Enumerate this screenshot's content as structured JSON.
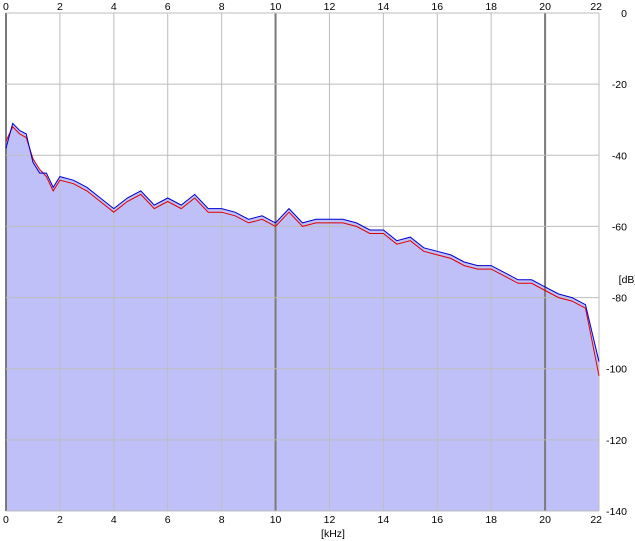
{
  "chart_data": {
    "type": "area",
    "title": "",
    "xlabel": "[kHz]",
    "ylabel": "[dB]",
    "xlim": [
      0,
      22
    ],
    "ylim": [
      -140,
      0
    ],
    "x_ticks": [
      "0",
      "2",
      "4",
      "6",
      "8",
      "10",
      "12",
      "14",
      "16",
      "18",
      "20",
      "22"
    ],
    "y_ticks": [
      "0",
      "-20",
      "-40",
      "-60",
      "-80",
      "-100",
      "-120",
      "-140"
    ],
    "grid": true,
    "legend": "none",
    "colors": {
      "background": "#ffffff",
      "fill": "#c0c0f8",
      "grid_minor": "#bdbdbd",
      "grid_major": "#7a7a7a",
      "series_1": "#e00000",
      "series_2": "#0000d0"
    },
    "series": [
      {
        "color": "#e00000",
        "x": [
          0,
          0.25,
          0.5,
          0.75,
          1,
          1.25,
          1.5,
          1.75,
          2,
          2.5,
          3,
          3.5,
          4,
          4.5,
          5,
          5.5,
          6,
          6.5,
          7,
          7.5,
          8,
          8.5,
          9,
          9.5,
          10,
          10.5,
          11,
          11.5,
          12,
          12.5,
          13,
          13.5,
          14,
          14.5,
          15,
          15.5,
          16,
          16.5,
          17,
          17.5,
          18,
          18.5,
          19,
          19.5,
          20,
          20.5,
          21,
          21.5,
          22
        ],
        "values": [
          -36,
          -32,
          -34,
          -35,
          -41,
          -44,
          -46,
          -50,
          -47,
          -48,
          -50,
          -53,
          -56,
          -53,
          -51,
          -55,
          -53,
          -55,
          -52,
          -56,
          -56,
          -57,
          -59,
          -58,
          -60,
          -56,
          -60,
          -59,
          -59,
          -59,
          -60,
          -62,
          -62,
          -65,
          -64,
          -67,
          -68,
          -69,
          -71,
          -72,
          -72,
          -74,
          -76,
          -76,
          -78,
          -80,
          -81,
          -83,
          -102
        ]
      },
      {
        "color": "#0000d0",
        "x": [
          0,
          0.25,
          0.5,
          0.75,
          1,
          1.25,
          1.5,
          1.75,
          2,
          2.5,
          3,
          3.5,
          4,
          4.5,
          5,
          5.5,
          6,
          6.5,
          7,
          7.5,
          8,
          8.5,
          9,
          9.5,
          10,
          10.5,
          11,
          11.5,
          12,
          12.5,
          13,
          13.5,
          14,
          14.5,
          15,
          15.5,
          16,
          16.5,
          17,
          17.5,
          18,
          18.5,
          19,
          19.5,
          20,
          20.5,
          21,
          21.5,
          22
        ],
        "values": [
          -38,
          -31,
          -33,
          -34,
          -42,
          -45,
          -45,
          -49,
          -46,
          -47,
          -49,
          -52,
          -55,
          -52,
          -50,
          -54,
          -52,
          -54,
          -51,
          -55,
          -55,
          -56,
          -58,
          -57,
          -59,
          -55,
          -59,
          -58,
          -58,
          -58,
          -59,
          -61,
          -61,
          -64,
          -63,
          -66,
          -67,
          -68,
          -70,
          -71,
          -71,
          -73,
          -75,
          -75,
          -77,
          -79,
          -80,
          -82,
          -98
        ]
      }
    ]
  }
}
